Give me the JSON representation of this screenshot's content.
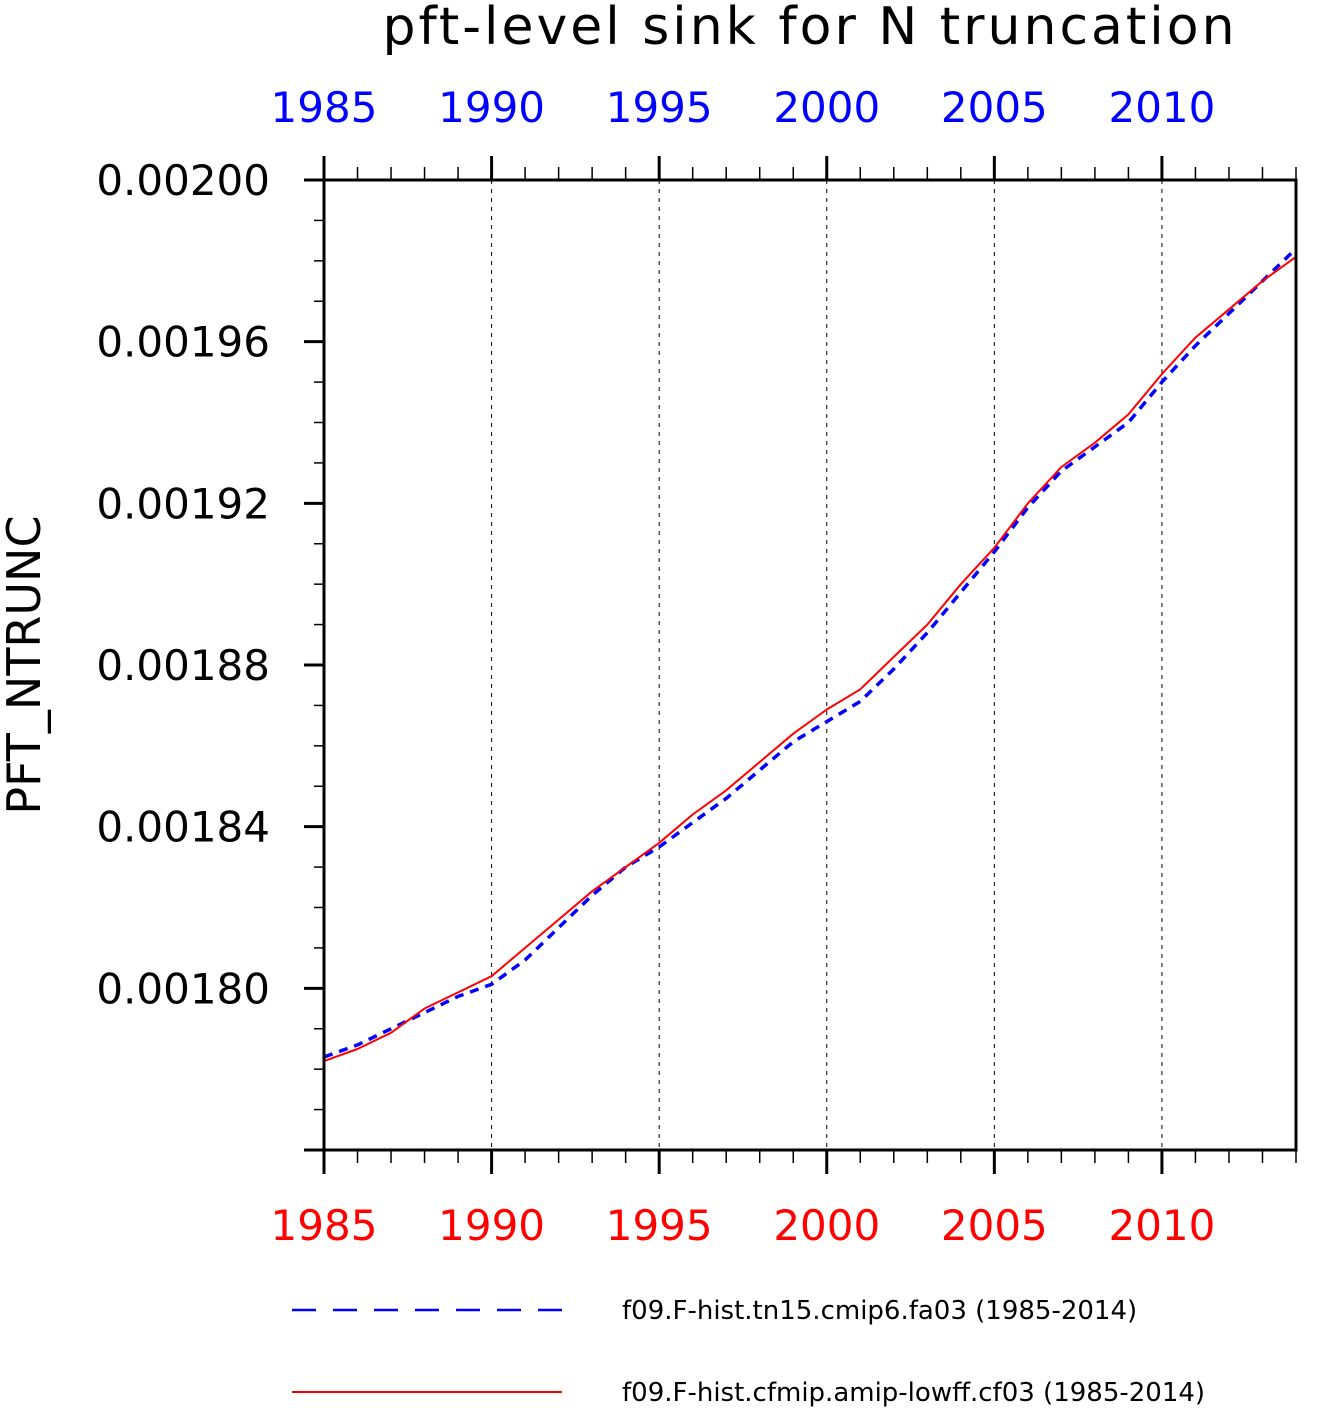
{
  "chart_data": {
    "type": "line",
    "title": "pft-level sink for N truncation",
    "ylabel": "PFT_NTRUNC",
    "xlabel": "",
    "xlim": [
      1985,
      2014
    ],
    "ylim": [
      0.00176,
      0.002
    ],
    "x_ticks": [
      "1985",
      "1990",
      "1995",
      "2000",
      "2005",
      "2010"
    ],
    "y_ticks": [
      "0.00200",
      "0.00196",
      "0.00192",
      "0.00188",
      "0.00184",
      "0.00180"
    ],
    "grid": "vertical dashed at major x ticks",
    "legend_position": "bottom",
    "x": [
      1985,
      1986,
      1987,
      1988,
      1989,
      1990,
      1991,
      1992,
      1993,
      1994,
      1995,
      1996,
      1997,
      1998,
      1999,
      2000,
      2001,
      2002,
      2003,
      2004,
      2005,
      2006,
      2007,
      2008,
      2009,
      2010,
      2011,
      2012,
      2013,
      2014
    ],
    "series": [
      {
        "name": "f09.F-hist.tn15.cmip6.fa03 (1985-2014)",
        "color": "#0000ff",
        "style": "dashed",
        "values": [
          0.001783,
          0.001786,
          0.00179,
          0.001794,
          0.001798,
          0.001801,
          0.001807,
          0.001815,
          0.001823,
          0.00183,
          0.001835,
          0.001841,
          0.001847,
          0.001854,
          0.001861,
          0.001866,
          0.001871,
          0.001879,
          0.001888,
          0.001898,
          0.001908,
          0.001919,
          0.001928,
          0.001934,
          0.00194,
          0.00195,
          0.001959,
          0.001967,
          0.001975,
          0.001983
        ]
      },
      {
        "name": "f09.F-hist.cfmip.amip-lowff.cf03 (1985-2014)",
        "color": "#ff0000",
        "style": "solid",
        "values": [
          0.001782,
          0.001785,
          0.001789,
          0.001795,
          0.001799,
          0.001803,
          0.00181,
          0.001817,
          0.001824,
          0.00183,
          0.001836,
          0.001843,
          0.001849,
          0.001856,
          0.001863,
          0.001869,
          0.001874,
          0.001882,
          0.00189,
          0.0019,
          0.001909,
          0.00192,
          0.001929,
          0.001935,
          0.001942,
          0.001952,
          0.001961,
          0.001968,
          0.001975,
          0.001981
        ]
      }
    ]
  }
}
